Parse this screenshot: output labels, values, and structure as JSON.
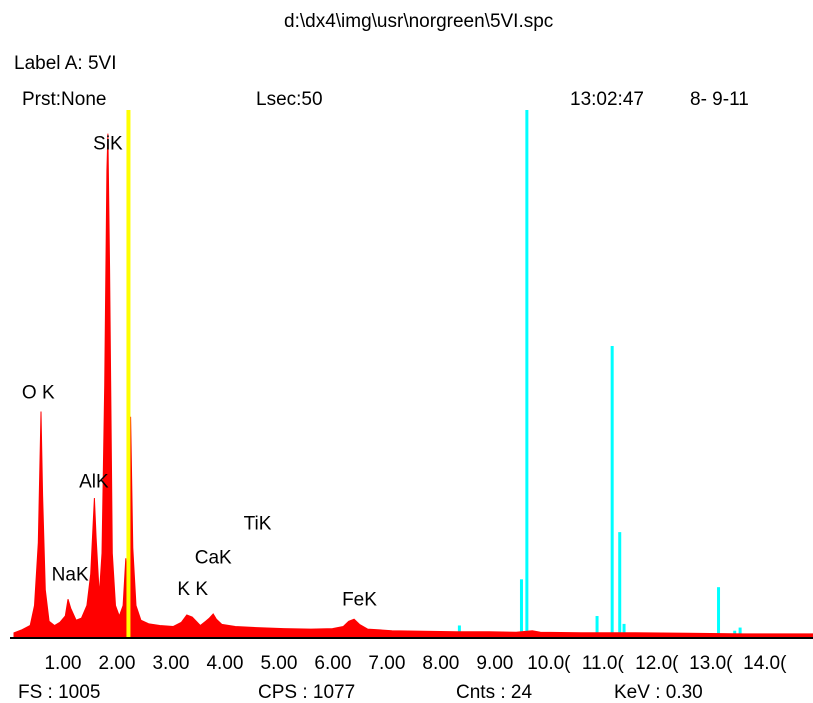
{
  "header": {
    "filepath": "d:\\dx4\\img\\usr\\norgreen\\5VI.spc",
    "label_a": "Label A: 5VI",
    "preset": "Prst:None",
    "lsec": "Lsec:50",
    "time": "13:02:47",
    "date": "8- 9-11"
  },
  "footer": {
    "fs": "FS : 1005",
    "cps": "CPS : 1077",
    "cnts": "Cnts : 24",
    "kev": "KeV : 0.30"
  },
  "colors": {
    "spectrum": "#ff0000",
    "marker": "#ffff00",
    "overlay": "#00ffff",
    "axis": "#000000"
  },
  "chart_data": {
    "type": "area",
    "title": "",
    "xlabel": "",
    "ylabel": "",
    "xlim": [
      0,
      14.8
    ],
    "ylim": [
      0,
      1005
    ],
    "x_tick_labels": [
      "1.00",
      "2.00",
      "3.00",
      "4.00",
      "5.00",
      "6.00",
      "7.00",
      "8.00",
      "9.00",
      "10.0(",
      "11.0(",
      "12.0(",
      "13.0(",
      "14.0("
    ],
    "x_tick_values": [
      1.0,
      2.0,
      3.0,
      4.0,
      5.0,
      6.0,
      7.0,
      8.0,
      9.0,
      10.0,
      11.0,
      12.0,
      13.0,
      14.0
    ],
    "series": [
      {
        "kind": "spectrum",
        "points": [
          [
            0.0,
            8
          ],
          [
            0.15,
            14
          ],
          [
            0.3,
            22
          ],
          [
            0.38,
            60
          ],
          [
            0.45,
            180
          ],
          [
            0.5,
            430
          ],
          [
            0.53,
            270
          ],
          [
            0.58,
            90
          ],
          [
            0.65,
            30
          ],
          [
            0.75,
            22
          ],
          [
            0.85,
            28
          ],
          [
            0.95,
            40
          ],
          [
            1.0,
            72
          ],
          [
            1.05,
            55
          ],
          [
            1.15,
            32
          ],
          [
            1.25,
            36
          ],
          [
            1.35,
            60
          ],
          [
            1.42,
            120
          ],
          [
            1.49,
            265
          ],
          [
            1.52,
            190
          ],
          [
            1.58,
            80
          ],
          [
            1.63,
            160
          ],
          [
            1.68,
            480
          ],
          [
            1.72,
            890
          ],
          [
            1.74,
            960
          ],
          [
            1.77,
            700
          ],
          [
            1.82,
            160
          ],
          [
            1.88,
            60
          ],
          [
            1.95,
            40
          ],
          [
            2.02,
            60
          ],
          [
            2.07,
            150
          ],
          [
            2.11,
            80
          ],
          [
            2.16,
            420
          ],
          [
            2.2,
            170
          ],
          [
            2.26,
            60
          ],
          [
            2.35,
            32
          ],
          [
            2.5,
            25
          ],
          [
            2.7,
            22
          ],
          [
            2.95,
            20
          ],
          [
            3.1,
            28
          ],
          [
            3.2,
            42
          ],
          [
            3.3,
            38
          ],
          [
            3.45,
            22
          ],
          [
            3.55,
            30
          ],
          [
            3.62,
            36
          ],
          [
            3.69,
            44
          ],
          [
            3.75,
            34
          ],
          [
            3.85,
            24
          ],
          [
            4.1,
            20
          ],
          [
            4.5,
            18
          ],
          [
            5.0,
            16
          ],
          [
            5.5,
            15
          ],
          [
            5.9,
            16
          ],
          [
            6.1,
            20
          ],
          [
            6.2,
            30
          ],
          [
            6.3,
            34
          ],
          [
            6.4,
            24
          ],
          [
            6.55,
            15
          ],
          [
            7.0,
            12
          ],
          [
            7.6,
            11
          ],
          [
            8.2,
            10
          ],
          [
            8.8,
            10
          ],
          [
            9.3,
            9
          ],
          [
            9.6,
            12
          ],
          [
            9.75,
            9
          ],
          [
            10.5,
            8
          ],
          [
            11.5,
            8
          ],
          [
            12.5,
            7
          ],
          [
            13.5,
            6
          ],
          [
            14.8,
            6
          ]
        ]
      },
      {
        "kind": "marker",
        "x": 2.12,
        "height": 1005
      },
      {
        "kind": "overlay_lines",
        "lines": [
          [
            8.25,
            22
          ],
          [
            9.4,
            110
          ],
          [
            9.5,
            1005
          ],
          [
            10.8,
            40
          ],
          [
            11.08,
            555
          ],
          [
            11.22,
            200
          ],
          [
            11.3,
            25
          ],
          [
            13.05,
            95
          ],
          [
            13.35,
            12
          ],
          [
            13.45,
            18
          ]
        ]
      }
    ],
    "peak_labels": [
      {
        "text": "SiK",
        "x": 1.74,
        "y": 930
      },
      {
        "text": "O K",
        "x": 0.45,
        "y": 455
      },
      {
        "text": "AlK",
        "x": 1.48,
        "y": 285
      },
      {
        "text": "NaK",
        "x": 1.04,
        "y": 108
      },
      {
        "text": "K K",
        "x": 3.31,
        "y": 80
      },
      {
        "text": "CaK",
        "x": 3.69,
        "y": 140
      },
      {
        "text": "TiK",
        "x": 4.51,
        "y": 205
      },
      {
        "text": "FeK",
        "x": 6.4,
        "y": 60
      }
    ],
    "grid": false,
    "legend": "none"
  }
}
